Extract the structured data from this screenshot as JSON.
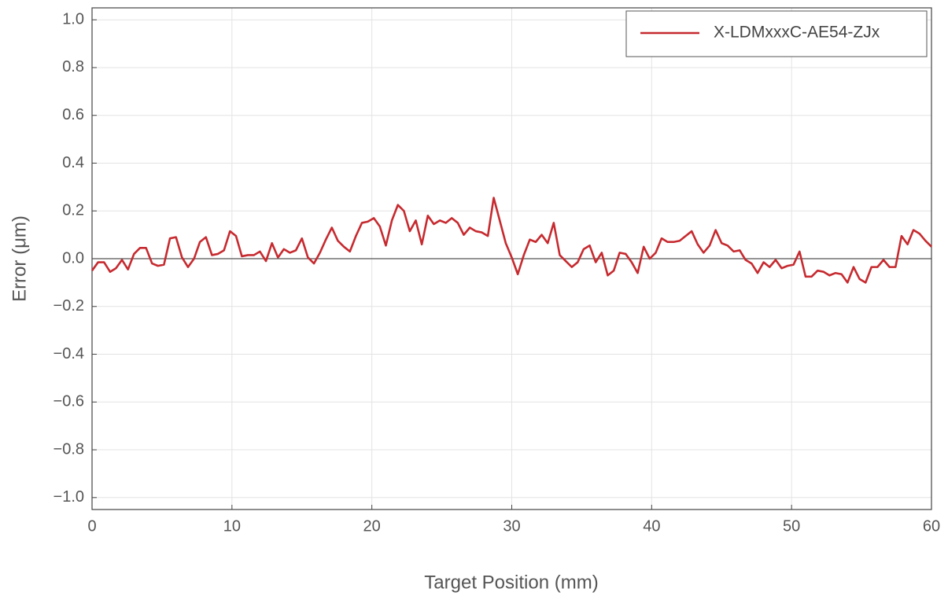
{
  "chart_data": {
    "type": "line",
    "xlabel": "Target Position (mm)",
    "ylabel": "Error (μm)",
    "xlim": [
      0,
      60
    ],
    "ylim": [
      -1.05,
      1.05
    ],
    "xticks": [
      0,
      10,
      20,
      30,
      40,
      50,
      60
    ],
    "yticks": [
      {
        "value": -1.0,
        "label": "−1.0"
      },
      {
        "value": -0.8,
        "label": "−0.8"
      },
      {
        "value": -0.6,
        "label": "−0.6"
      },
      {
        "value": -0.4,
        "label": "−0.4"
      },
      {
        "value": -0.2,
        "label": "−0.2"
      },
      {
        "value": 0.0,
        "label": "0.0"
      },
      {
        "value": 0.2,
        "label": "0.2"
      },
      {
        "value": 0.4,
        "label": "0.4"
      },
      {
        "value": 0.6,
        "label": "0.6"
      },
      {
        "value": 0.8,
        "label": "0.8"
      },
      {
        "value": 1.0,
        "label": "1.0"
      }
    ],
    "grid": true,
    "legend": "upper right",
    "x": [
      0,
      0.43,
      0.86,
      1.29,
      1.71,
      2.14,
      2.57,
      3,
      3.43,
      3.86,
      4.29,
      4.71,
      5.14,
      5.57,
      6,
      6.43,
      6.86,
      7.29,
      7.71,
      8.14,
      8.57,
      9,
      9.43,
      9.86,
      10.29,
      10.71,
      11.14,
      11.57,
      12,
      12.43,
      12.86,
      13.29,
      13.71,
      14.14,
      14.57,
      15,
      15.43,
      15.86,
      16.29,
      16.71,
      17.14,
      17.57,
      18,
      18.43,
      18.86,
      19.29,
      19.71,
      20.14,
      20.57,
      21,
      21.43,
      21.86,
      22.29,
      22.71,
      23.14,
      23.57,
      24,
      24.43,
      24.86,
      25.29,
      25.71,
      26.14,
      26.57,
      27,
      27.43,
      27.86,
      28.29,
      28.71,
      29.14,
      29.57,
      30,
      30.43,
      30.86,
      31.29,
      31.71,
      32.14,
      32.57,
      33,
      33.43,
      33.86,
      34.29,
      34.71,
      35.14,
      35.57,
      36,
      36.43,
      36.86,
      37.29,
      37.71,
      38.14,
      38.57,
      39,
      39.43,
      39.86,
      40.29,
      40.71,
      41.14,
      41.57,
      42,
      42.43,
      42.86,
      43.29,
      43.71,
      44.14,
      44.57,
      45,
      45.43,
      45.86,
      46.29,
      46.71,
      47.14,
      47.57,
      48,
      48.43,
      48.86,
      49.29,
      49.71,
      50.14,
      50.57,
      51,
      51.43,
      51.86,
      52.29,
      52.71,
      53.14,
      53.57,
      54,
      54.43,
      54.86,
      55.29,
      55.71,
      56.14,
      56.57,
      57,
      57.43,
      57.86,
      58.29,
      58.71,
      59.14,
      59.57,
      60
    ],
    "series": [
      {
        "name": "X-LDMxxxC-AE54-ZJx",
        "color": "#c62a2f",
        "values": [
          -0.05,
          -0.015,
          -0.015,
          -0.055,
          -0.04,
          -0.005,
          -0.045,
          0.02,
          0.045,
          0.045,
          -0.02,
          -0.03,
          -0.025,
          0.085,
          0.09,
          0.005,
          -0.035,
          0.0,
          0.07,
          0.09,
          0.015,
          0.02,
          0.035,
          0.115,
          0.095,
          0.01,
          0.015,
          0.015,
          0.03,
          -0.01,
          0.065,
          0.005,
          0.04,
          0.025,
          0.035,
          0.085,
          0.005,
          -0.02,
          0.025,
          0.08,
          0.13,
          0.075,
          0.05,
          0.03,
          0.095,
          0.15,
          0.155,
          0.17,
          0.135,
          0.055,
          0.16,
          0.225,
          0.2,
          0.115,
          0.16,
          0.06,
          0.18,
          0.145,
          0.16,
          0.15,
          0.17,
          0.15,
          0.1,
          0.13,
          0.115,
          0.11,
          0.095,
          0.255,
          0.16,
          0.065,
          0.005,
          -0.065,
          0.015,
          0.08,
          0.07,
          0.1,
          0.065,
          0.15,
          0.015,
          -0.01,
          -0.035,
          -0.015,
          0.04,
          0.055,
          -0.015,
          0.025,
          -0.07,
          -0.05,
          0.025,
          0.02,
          -0.015,
          -0.06,
          0.05,
          0.0,
          0.025,
          0.085,
          0.07,
          0.07,
          0.075,
          0.095,
          0.115,
          0.06,
          0.025,
          0.055,
          0.12,
          0.065,
          0.055,
          0.03,
          0.035,
          -0.005,
          -0.02,
          -0.06,
          -0.015,
          -0.035,
          -0.005,
          -0.04,
          -0.03,
          -0.025,
          0.03,
          -0.075,
          -0.075,
          -0.05,
          -0.055,
          -0.07,
          -0.06,
          -0.065,
          -0.1,
          -0.035,
          -0.085,
          -0.1,
          -0.035,
          -0.035,
          -0.005,
          -0.035,
          -0.035,
          0.095,
          0.06,
          0.12,
          0.105,
          0.075,
          0.05
        ]
      }
    ]
  }
}
